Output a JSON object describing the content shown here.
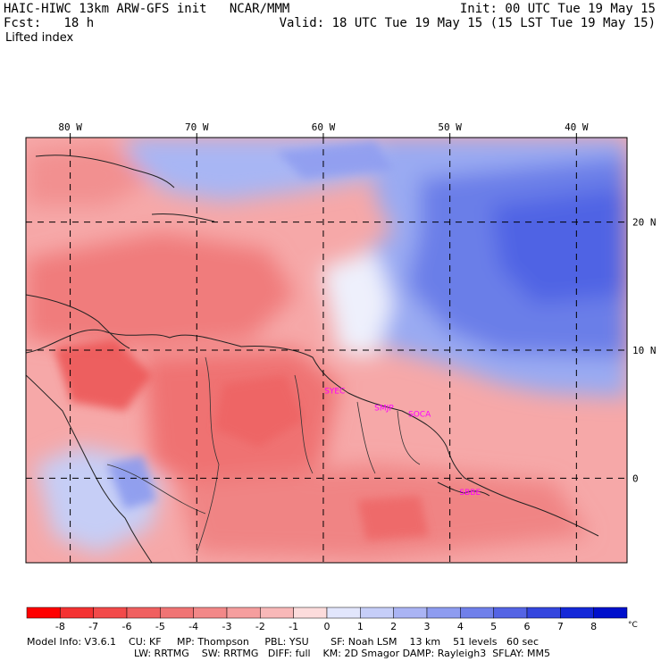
{
  "header": {
    "model": "HAIC-HIWC 13km ARW-GFS init",
    "org": "NCAR/MMM",
    "fcst_label": "Fcst:",
    "fcst_value": "18 h",
    "field": "Lifted index",
    "init": "Init: 00 UTC Tue 19 May 15",
    "valid": "Valid: 18 UTC Tue 19 May 15 (15 LST Tue 19 May 15)"
  },
  "map": {
    "lon_labels": [
      "80 W",
      "70 W",
      "60 W",
      "50 W",
      "40 W"
    ],
    "lon_values": [
      -80,
      -70,
      -60,
      -50,
      -40
    ],
    "lat_labels": [
      "20 N",
      "10 N",
      "0"
    ],
    "lat_values": [
      20,
      10,
      0
    ],
    "lon_range": [
      -83.5,
      -36
    ],
    "lat_range": [
      -6.6,
      26.6
    ],
    "station_labels": [
      {
        "text": "SYEC",
        "lon": -59.1,
        "lat": 6.6
      },
      {
        "text": "SMJP",
        "lon": -55.2,
        "lat": 5.3
      },
      {
        "text": "SOCA",
        "lon": -52.4,
        "lat": 4.8
      },
      {
        "text": "SBBE",
        "lon": -48.4,
        "lat": -1.3
      }
    ],
    "colors": {
      "neg_strong": "#f03c3c",
      "neg_mid": "#f08080",
      "neg_light": "#f5b4b4",
      "neutral": "#ffffff",
      "pos_light": "#c8d2fa",
      "pos_mid": "#8ca0f0",
      "pos_strong": "#5064e6",
      "station": "#ff00ff",
      "grid": "#000000"
    }
  },
  "colorbar": {
    "levels": [
      "-8",
      "-7",
      "-6",
      "-5",
      "-4",
      "-3",
      "-2",
      "-1",
      "0",
      "1",
      "2",
      "3",
      "4",
      "5",
      "6",
      "7",
      "8"
    ],
    "unit": "°C",
    "colors": [
      "#ff0000",
      "#f43232",
      "#f24a4a",
      "#f06060",
      "#f07474",
      "#f28888",
      "#f59e9e",
      "#f8b8b8",
      "#fcdcdc",
      "#e2e6fc",
      "#c6cef8",
      "#aab4f4",
      "#8e9cf0",
      "#7080ea",
      "#5464e4",
      "#3446de",
      "#1428d8",
      "#0010cc"
    ]
  },
  "footer": {
    "line1": "Model Info: V3.6.1    CU: KF     MP: Thompson     PBL: YSU       SF: Noah LSM    13 km    51 levels   60 sec",
    "line2": "LW: RRTMG    SW: RRTMG   DIFF: full    KM: 2D Smagor DAMP: Rayleigh3  SFLAY: MM5"
  }
}
